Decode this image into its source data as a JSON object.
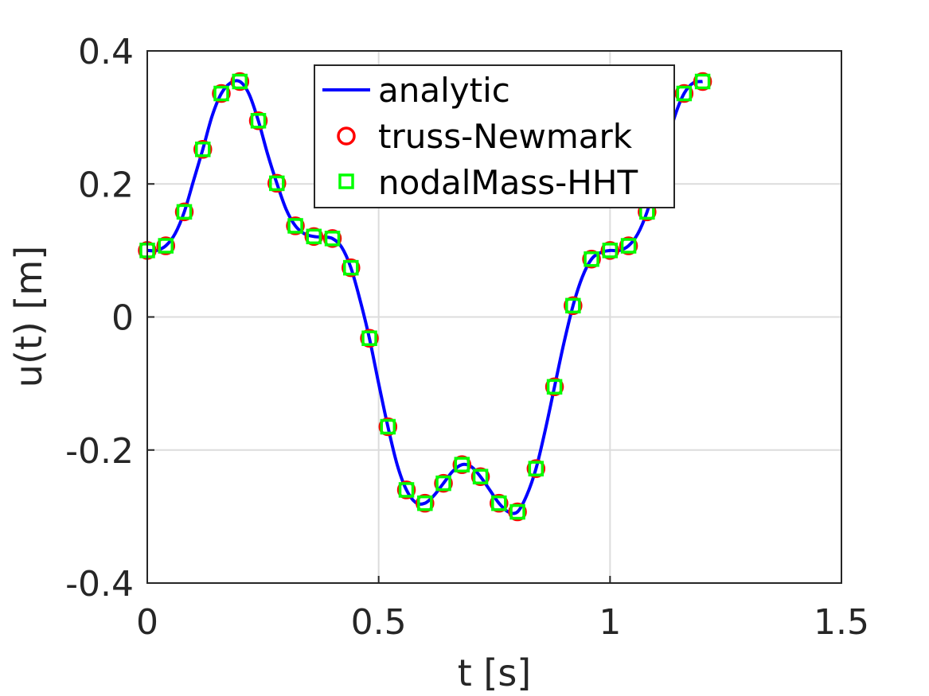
{
  "chart_data": {
    "type": "line",
    "xlabel": "t [s]",
    "ylabel": "u(t) [m]",
    "xlim": [
      0,
      1.5
    ],
    "ylim": [
      -0.4,
      0.4
    ],
    "xticks": [
      0,
      0.5,
      1,
      1.5
    ],
    "xtick_labels": [
      "0",
      "0.5",
      "1",
      "1.5"
    ],
    "yticks": [
      -0.4,
      -0.2,
      0,
      0.2,
      0.4
    ],
    "ytick_labels": [
      "-0.4",
      "-0.2",
      "0",
      "0.2",
      "0.4"
    ],
    "grid": true,
    "legend_position": "top-center",
    "series": [
      {
        "name": "analytic",
        "style": "line",
        "color": "#0000ff",
        "x": [
          0,
          0.02,
          0.04,
          0.06,
          0.08,
          0.1,
          0.12,
          0.14,
          0.16,
          0.18,
          0.2,
          0.22,
          0.24,
          0.26,
          0.28,
          0.3,
          0.32,
          0.34,
          0.36,
          0.38,
          0.4,
          0.42,
          0.44,
          0.46,
          0.48,
          0.5,
          0.52,
          0.54,
          0.56,
          0.58,
          0.6,
          0.62,
          0.64,
          0.66,
          0.68,
          0.7,
          0.72,
          0.74,
          0.76,
          0.78,
          0.8,
          0.82,
          0.84,
          0.86,
          0.88,
          0.9,
          0.92,
          0.94,
          0.96,
          0.98,
          1.0,
          1.02,
          1.04,
          1.06,
          1.08,
          1.1,
          1.12,
          1.14,
          1.16,
          1.18,
          1.2
        ],
        "y": [
          0.1,
          0.1,
          0.107,
          0.125,
          0.158,
          0.205,
          0.252,
          0.302,
          0.336,
          0.352,
          0.354,
          0.335,
          0.295,
          0.245,
          0.201,
          0.162,
          0.137,
          0.125,
          0.121,
          0.12,
          0.118,
          0.105,
          0.074,
          0.025,
          -0.032,
          -0.1,
          -0.165,
          -0.222,
          -0.26,
          -0.279,
          -0.28,
          -0.268,
          -0.25,
          -0.232,
          -0.222,
          -0.225,
          -0.24,
          -0.26,
          -0.28,
          -0.293,
          -0.293,
          -0.268,
          -0.228,
          -0.17,
          -0.105,
          -0.04,
          0.017,
          0.06,
          0.087,
          0.097,
          0.1,
          0.1,
          0.107,
          0.125,
          0.158,
          0.205,
          0.252,
          0.302,
          0.336,
          0.352,
          0.354
        ]
      },
      {
        "name": "truss-Newmark",
        "style": "marker-circle",
        "color": "#ff0000",
        "x": [
          0,
          0.04,
          0.08,
          0.12,
          0.16,
          0.2,
          0.24,
          0.28,
          0.32,
          0.36,
          0.4,
          0.44,
          0.48,
          0.52,
          0.56,
          0.6,
          0.64,
          0.68,
          0.72,
          0.76,
          0.8,
          0.84,
          0.88,
          0.92,
          0.96,
          1.0,
          1.04,
          1.08,
          1.12,
          1.16,
          1.2
        ],
        "y": [
          0.1,
          0.107,
          0.158,
          0.252,
          0.336,
          0.354,
          0.295,
          0.201,
          0.137,
          0.121,
          0.118,
          0.074,
          -0.032,
          -0.165,
          -0.26,
          -0.28,
          -0.25,
          -0.222,
          -0.24,
          -0.28,
          -0.293,
          -0.228,
          -0.105,
          0.017,
          0.087,
          0.1,
          0.107,
          0.158,
          0.252,
          0.336,
          0.354
        ]
      },
      {
        "name": "nodalMass-HHT",
        "style": "marker-square",
        "color": "#00ff00",
        "x": [
          0,
          0.04,
          0.08,
          0.12,
          0.16,
          0.2,
          0.24,
          0.28,
          0.32,
          0.36,
          0.4,
          0.44,
          0.48,
          0.52,
          0.56,
          0.6,
          0.64,
          0.68,
          0.72,
          0.76,
          0.8,
          0.84,
          0.88,
          0.92,
          0.96,
          1.0,
          1.04,
          1.08,
          1.12,
          1.16,
          1.2
        ],
        "y": [
          0.1,
          0.107,
          0.158,
          0.252,
          0.336,
          0.354,
          0.295,
          0.201,
          0.137,
          0.121,
          0.118,
          0.074,
          -0.032,
          -0.165,
          -0.26,
          -0.28,
          -0.25,
          -0.222,
          -0.24,
          -0.28,
          -0.293,
          -0.228,
          -0.105,
          0.017,
          0.087,
          0.1,
          0.107,
          0.158,
          0.252,
          0.336,
          0.354
        ]
      }
    ]
  }
}
